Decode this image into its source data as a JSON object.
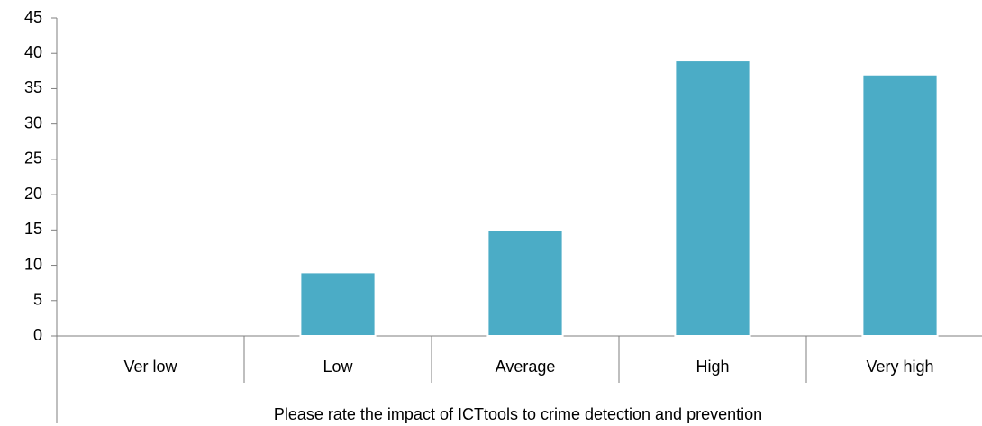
{
  "chart_data": {
    "type": "bar",
    "x_label": "Please rate the impact of ICTtools to crime detection and prevention",
    "categories": [
      "Ver low",
      "Low",
      "Average",
      "High",
      "Very high"
    ],
    "values": [
      0,
      9,
      15,
      39,
      37
    ],
    "color": "#4bacc6",
    "ylim": [
      0,
      45
    ],
    "yticks": [
      0,
      5,
      10,
      15,
      20,
      25,
      30,
      35,
      40,
      45
    ],
    "grid": false
  }
}
